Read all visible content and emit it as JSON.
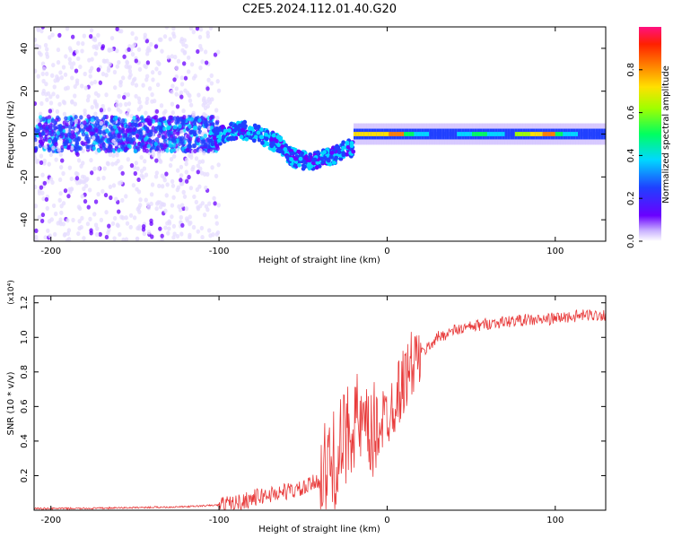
{
  "title": "C2E5.2024.112.01.40.G20",
  "chart_data": [
    {
      "type": "heatmap",
      "xlabel": "Height of straight line (km)",
      "ylabel": "Frequency (Hz)",
      "xlim": [
        -210,
        130
      ],
      "ylim": [
        -50,
        50
      ],
      "xticks": [
        -200,
        -100,
        0,
        100
      ],
      "yticks": [
        -40,
        -20,
        0,
        20,
        40
      ],
      "grid": false,
      "colorbar": {
        "label": "Normalized spectral amplitude",
        "range": [
          0,
          1
        ],
        "ticks": [
          "0.0",
          "0.2",
          "0.4",
          "0.6",
          "0.8"
        ]
      },
      "regions": [
        {
          "x": [
            -210,
            -105
          ],
          "description_of_values": "broadband scatter, low amplitude, strongest near 0 Hz"
        },
        {
          "x": [
            -105,
            -20
          ],
          "description_of_values": "wavy tone near 0 Hz, amplitude 0.3-0.5"
        },
        {
          "x": [
            -20,
            130
          ],
          "description_of_values": "narrow band at 0 Hz, amplitude 0.4-1.0"
        }
      ]
    },
    {
      "type": "line",
      "xlabel": "Height of straight line (km)",
      "ylabel": "SNR (10 * v/v)",
      "yscale_label": "(x10⁴)",
      "xlim": [
        -210,
        130
      ],
      "ylim": [
        0,
        1.24
      ],
      "xticks": [
        -200,
        -100,
        0,
        100
      ],
      "yticks": [
        0.2,
        0.4,
        0.6,
        0.8,
        1.0,
        1.2
      ],
      "grid": false,
      "color": "#e83a3a",
      "x": [
        -210,
        -180,
        -150,
        -120,
        -100,
        -90,
        -80,
        -70,
        -60,
        -50,
        -40,
        -30,
        -25,
        -20,
        -15,
        -10,
        -5,
        0,
        5,
        10,
        15,
        20,
        25,
        30,
        40,
        50,
        60,
        70,
        80,
        90,
        100,
        110,
        120,
        130
      ],
      "values": [
        0.01,
        0.01,
        0.015,
        0.02,
        0.03,
        0.04,
        0.07,
        0.09,
        0.11,
        0.12,
        0.18,
        0.3,
        0.4,
        0.55,
        0.45,
        0.4,
        0.5,
        0.55,
        0.65,
        0.75,
        0.85,
        0.9,
        0.95,
        1.0,
        1.04,
        1.06,
        1.08,
        1.09,
        1.1,
        1.1,
        1.11,
        1.12,
        1.13,
        1.13
      ]
    }
  ]
}
